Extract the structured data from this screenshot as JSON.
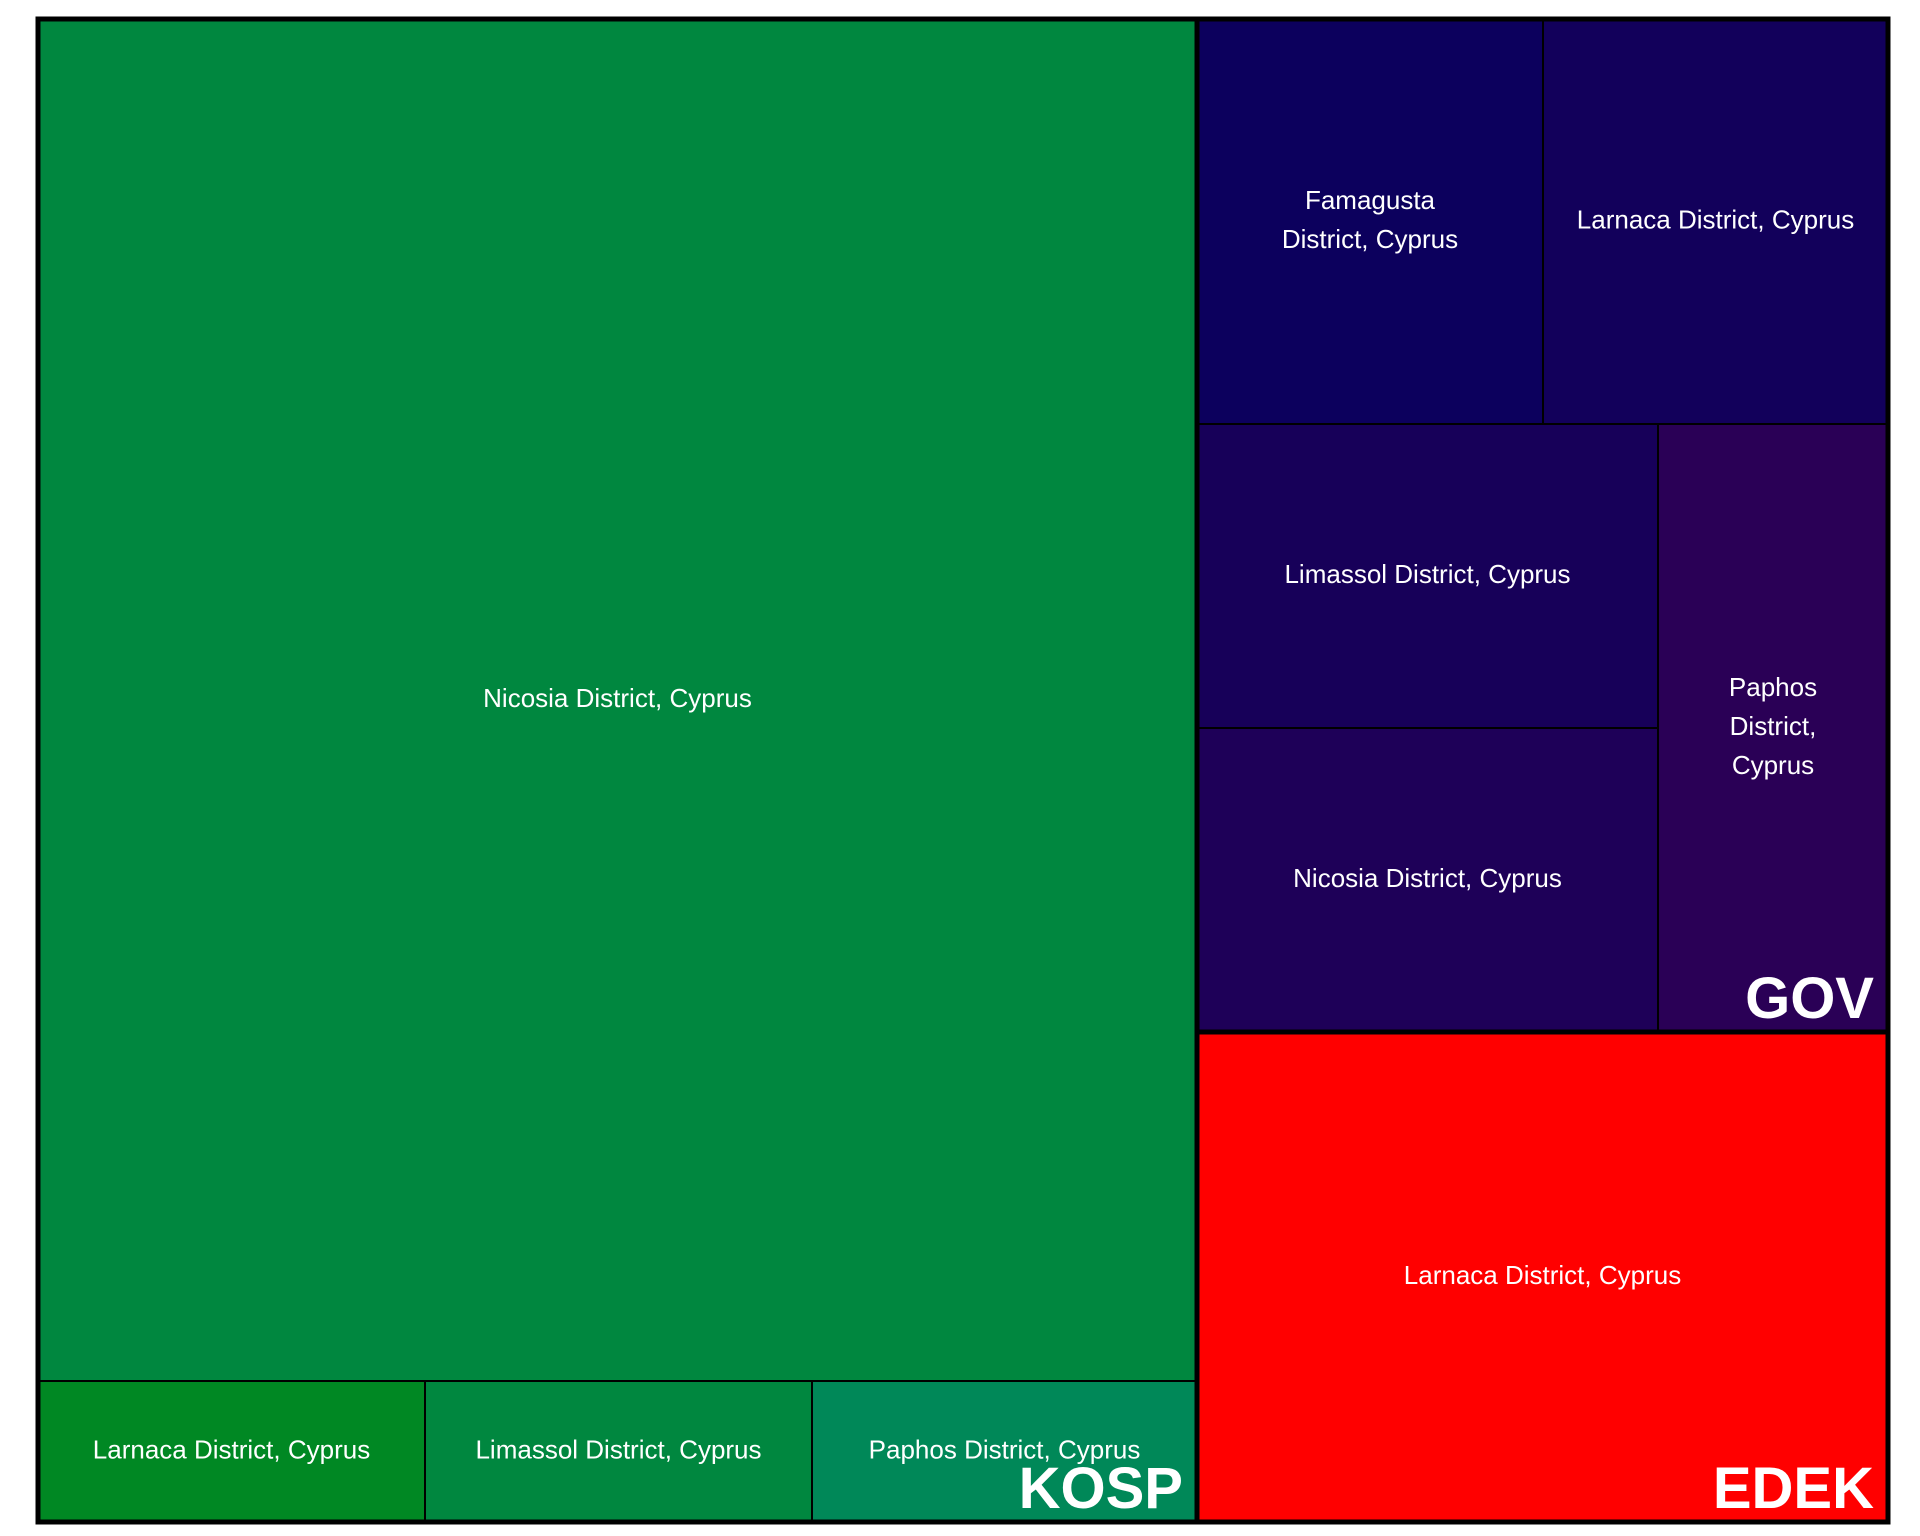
{
  "chart_data": {
    "type": "treemap",
    "title": "",
    "groups": [
      {
        "name": "KOSP",
        "color": "#00873f",
        "children": [
          {
            "name": "Nicosia District, Cyprus",
            "color": "#00873f"
          },
          {
            "name": "Larnaca District, Cyprus",
            "color": "#008823"
          },
          {
            "name": "Limassol District, Cyprus",
            "color": "#00873f"
          },
          {
            "name": "Paphos District, Cyprus",
            "color": "#008858"
          }
        ]
      },
      {
        "name": "GOV",
        "color": "#0d005e",
        "children": [
          {
            "name": "Famagusta District, Cyprus",
            "color": "#0c005d"
          },
          {
            "name": "Larnaca District, Cyprus",
            "color": "#12005b"
          },
          {
            "name": "Limassol District, Cyprus",
            "color": "#170059"
          },
          {
            "name": "Nicosia District, Cyprus",
            "color": "#1e0058"
          },
          {
            "name": "Paphos District, Cyprus",
            "color": "#2a0056"
          }
        ]
      },
      {
        "name": "EDEK",
        "color": "#ff0000",
        "children": [
          {
            "name": "Larnaca District, Cyprus",
            "color": "#ff0000"
          }
        ]
      }
    ]
  }
}
